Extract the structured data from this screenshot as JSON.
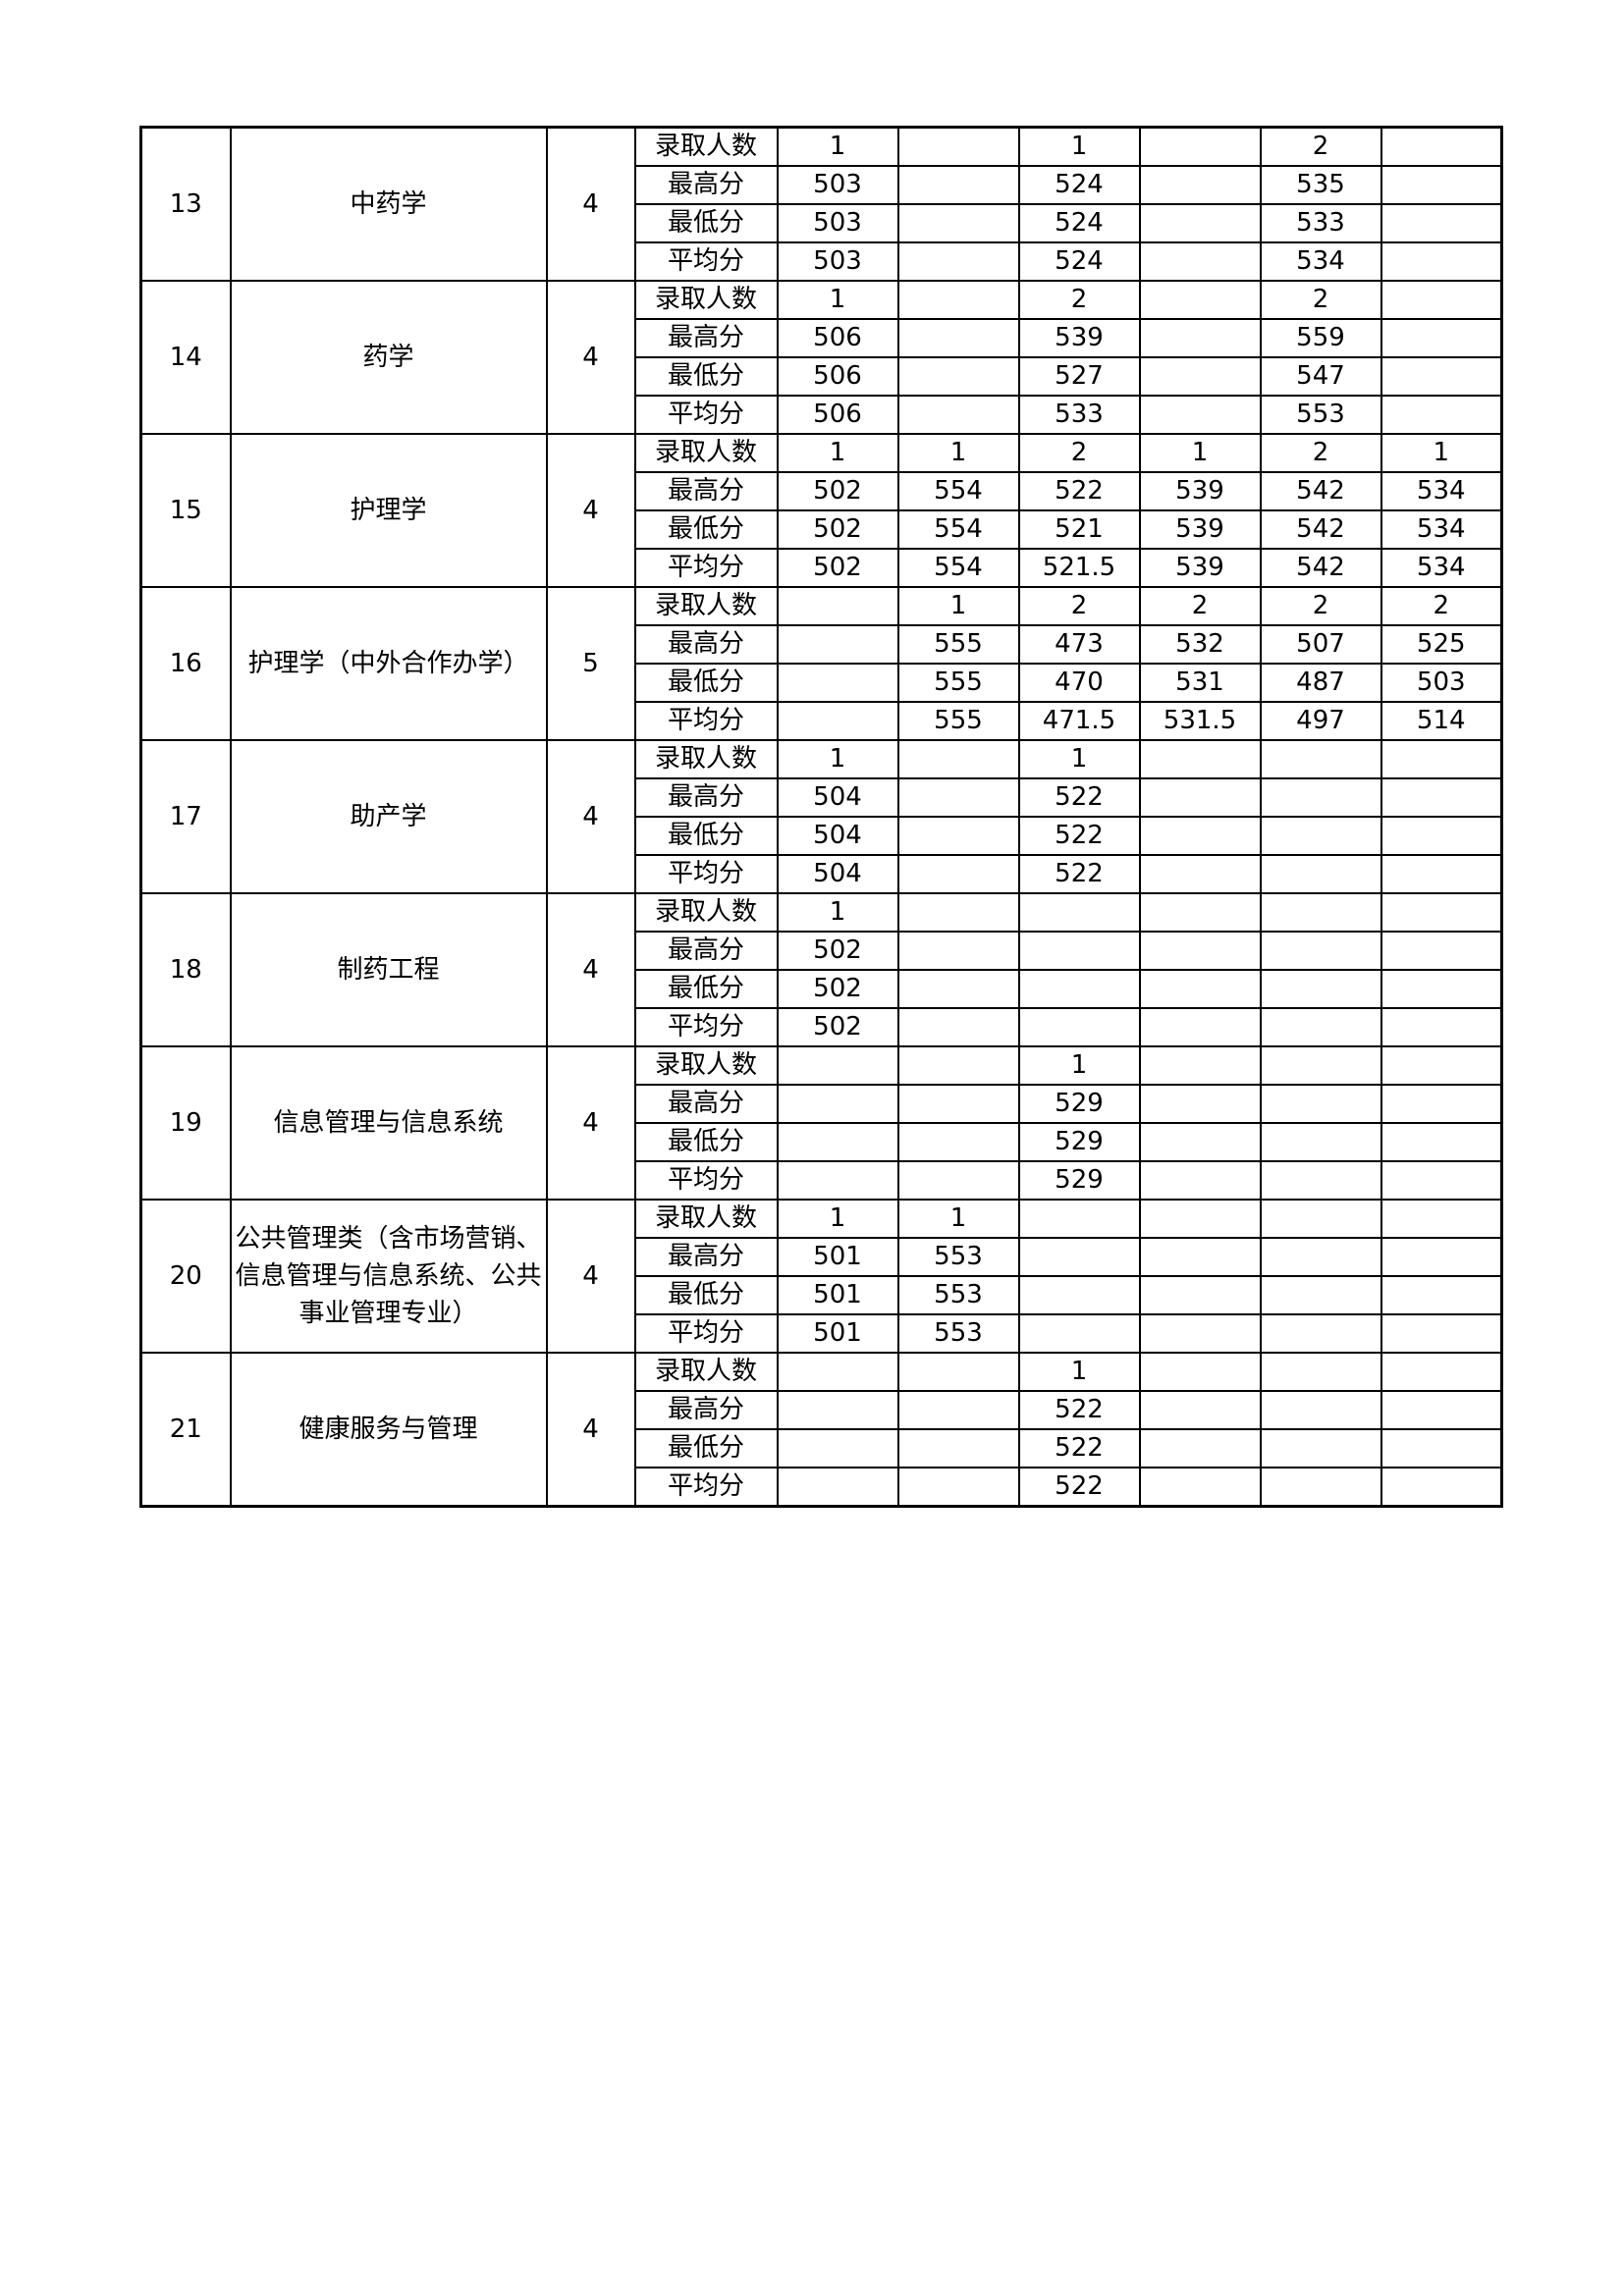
{
  "metric_labels": [
    "录取人数",
    "最高分",
    "最低分",
    "平均分"
  ],
  "table": {
    "rows": [
      {
        "no": 13,
        "name": "中药学",
        "years": 4,
        "metrics": [
          [
            1,
            null,
            1,
            null,
            2,
            null
          ],
          [
            503,
            null,
            524,
            null,
            535,
            null
          ],
          [
            503,
            null,
            524,
            null,
            533,
            null
          ],
          [
            503,
            null,
            524,
            null,
            534,
            null
          ]
        ]
      },
      {
        "no": 14,
        "name": "药学",
        "years": 4,
        "metrics": [
          [
            1,
            null,
            2,
            null,
            2,
            null
          ],
          [
            506,
            null,
            539,
            null,
            559,
            null
          ],
          [
            506,
            null,
            527,
            null,
            547,
            null
          ],
          [
            506,
            null,
            533,
            null,
            553,
            null
          ]
        ]
      },
      {
        "no": 15,
        "name": "护理学",
        "years": 4,
        "metrics": [
          [
            1,
            1,
            2,
            1,
            2,
            1
          ],
          [
            502,
            554,
            522,
            539,
            542,
            534
          ],
          [
            502,
            554,
            521,
            539,
            542,
            534
          ],
          [
            502,
            554,
            521.5,
            539,
            542,
            534
          ]
        ]
      },
      {
        "no": 16,
        "name": "护理学（中外合作办学）",
        "years": 5,
        "metrics": [
          [
            null,
            1,
            2,
            2,
            2,
            2
          ],
          [
            null,
            555,
            473,
            532,
            507,
            525
          ],
          [
            null,
            555,
            470,
            531,
            487,
            503
          ],
          [
            null,
            555,
            471.5,
            531.5,
            497,
            514
          ]
        ]
      },
      {
        "no": 17,
        "name": "助产学",
        "years": 4,
        "metrics": [
          [
            1,
            null,
            1,
            null,
            null,
            null
          ],
          [
            504,
            null,
            522,
            null,
            null,
            null
          ],
          [
            504,
            null,
            522,
            null,
            null,
            null
          ],
          [
            504,
            null,
            522,
            null,
            null,
            null
          ]
        ]
      },
      {
        "no": 18,
        "name": "制药工程",
        "years": 4,
        "metrics": [
          [
            1,
            null,
            null,
            null,
            null,
            null
          ],
          [
            502,
            null,
            null,
            null,
            null,
            null
          ],
          [
            502,
            null,
            null,
            null,
            null,
            null
          ],
          [
            502,
            null,
            null,
            null,
            null,
            null
          ]
        ]
      },
      {
        "no": 19,
        "name": "信息管理与信息系统",
        "years": 4,
        "metrics": [
          [
            null,
            null,
            1,
            null,
            null,
            null
          ],
          [
            null,
            null,
            529,
            null,
            null,
            null
          ],
          [
            null,
            null,
            529,
            null,
            null,
            null
          ],
          [
            null,
            null,
            529,
            null,
            null,
            null
          ]
        ]
      },
      {
        "no": 20,
        "name": "公共管理类（含市场营销、信息管理与信息系统、公共事业管理专业）",
        "years": 4,
        "metrics": [
          [
            1,
            1,
            null,
            null,
            null,
            null
          ],
          [
            501,
            553,
            null,
            null,
            null,
            null
          ],
          [
            501,
            553,
            null,
            null,
            null,
            null
          ],
          [
            501,
            553,
            null,
            null,
            null,
            null
          ]
        ]
      },
      {
        "no": 21,
        "name": "健康服务与管理",
        "years": 4,
        "metrics": [
          [
            null,
            null,
            1,
            null,
            null,
            null
          ],
          [
            null,
            null,
            522,
            null,
            null,
            null
          ],
          [
            null,
            null,
            522,
            null,
            null,
            null
          ],
          [
            null,
            null,
            522,
            null,
            null,
            null
          ]
        ]
      }
    ]
  }
}
